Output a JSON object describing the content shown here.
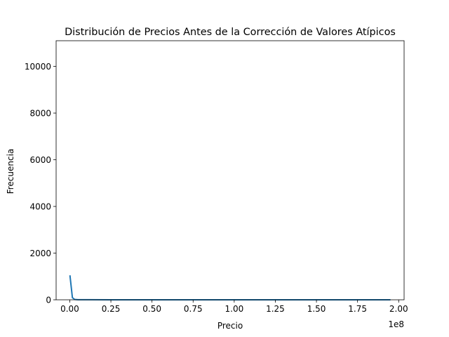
{
  "chart_data": {
    "type": "line",
    "title": "Distribución de Precios Antes de la Corrección de Valores Atípicos",
    "xlabel": "Precio",
    "ylabel": "Frecuencia",
    "x_offset_label": "1e8",
    "xlim": [
      -8300000,
      203300000
    ],
    "ylim": [
      0,
      11100
    ],
    "x_ticks": [
      0,
      0.25,
      0.5,
      0.75,
      1.0,
      1.25,
      1.5,
      1.75,
      2.0
    ],
    "x_tick_labels": [
      "0.00",
      "0.25",
      "0.50",
      "0.75",
      "1.00",
      "1.25",
      "1.50",
      "1.75",
      "2.00"
    ],
    "y_ticks": [
      0,
      2000,
      4000,
      6000,
      8000,
      10000
    ],
    "y_tick_labels": [
      "0",
      "2000",
      "4000",
      "6000",
      "8000",
      "10000"
    ],
    "grid": false,
    "legend": false,
    "series": [
      {
        "color": "#1f77b4",
        "x": [
          100000,
          1600000,
          3000000,
          5000000,
          10000000,
          25000000,
          50000000,
          100000000,
          150000000,
          195000000
        ],
        "y": [
          1050,
          90,
          15,
          5,
          2,
          1,
          0,
          0,
          0,
          0
        ]
      }
    ]
  }
}
